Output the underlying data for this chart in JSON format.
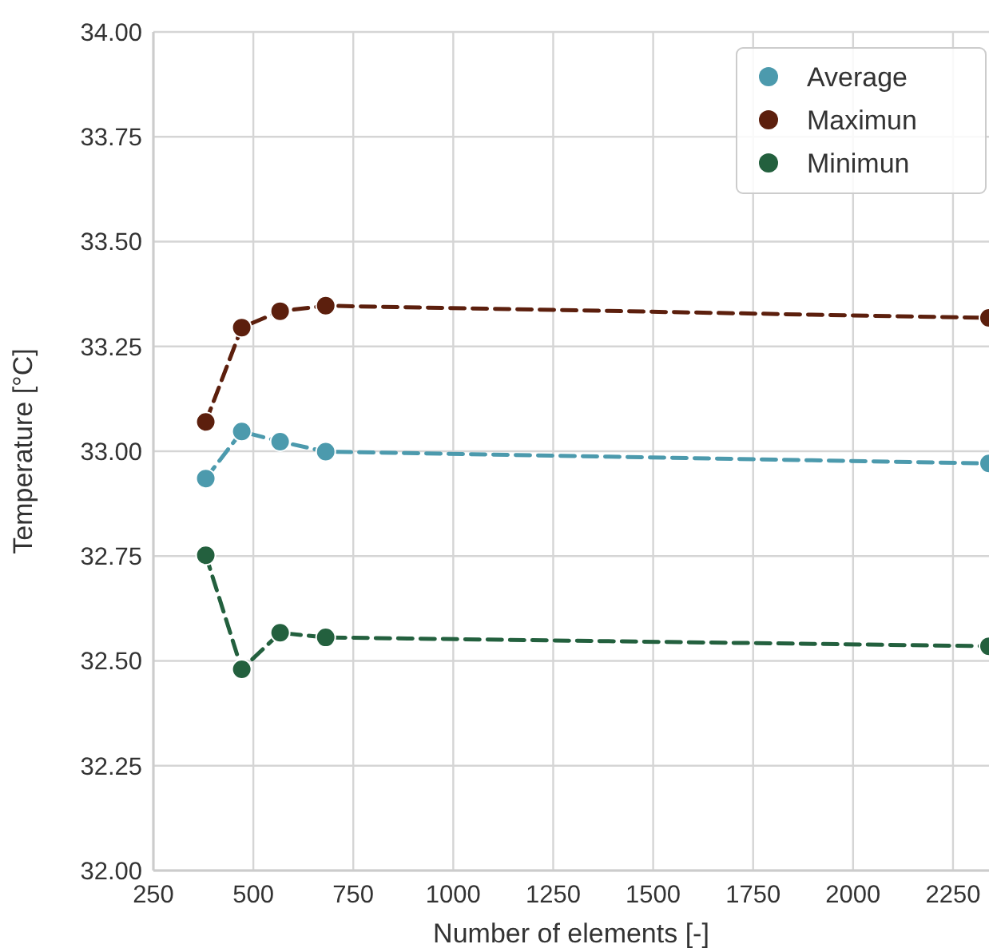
{
  "chart_data": {
    "type": "line",
    "xlabel": "Number of elements [-]",
    "ylabel": "Temperature [°C]",
    "x": [
      381,
      471,
      567,
      681,
      2340
    ],
    "series": [
      {
        "name": "Average",
        "color": "#4c9aad",
        "values": [
          32.935,
          33.047,
          33.023,
          32.999,
          32.971
        ]
      },
      {
        "name": "Maximun",
        "color": "#5c1f0d",
        "values": [
          33.07,
          33.295,
          33.334,
          33.347,
          33.318
        ]
      },
      {
        "name": "Minimun",
        "color": "#23603e",
        "values": [
          32.752,
          32.48,
          32.567,
          32.556,
          32.535
        ]
      }
    ],
    "xlim": [
      250,
      2340
    ],
    "xticks": [
      250,
      500,
      750,
      1000,
      1250,
      1500,
      1750,
      2000,
      2250
    ],
    "ylim": [
      32,
      34
    ],
    "yticks": [
      {
        "value": 32,
        "label": "32.00"
      },
      {
        "value": 32.25,
        "label": "32.25"
      },
      {
        "value": 32.5,
        "label": "32.50"
      },
      {
        "value": 32.75,
        "label": "32.75"
      },
      {
        "value": 33,
        "label": "33.00"
      },
      {
        "value": 33.25,
        "label": "33.25"
      },
      {
        "value": 33.5,
        "label": "33.50"
      },
      {
        "value": 33.75,
        "label": "33.75"
      },
      {
        "value": 34,
        "label": "34.00"
      }
    ],
    "grid": true,
    "legend": "top right",
    "marker": "circle",
    "line_style": "dashed"
  }
}
